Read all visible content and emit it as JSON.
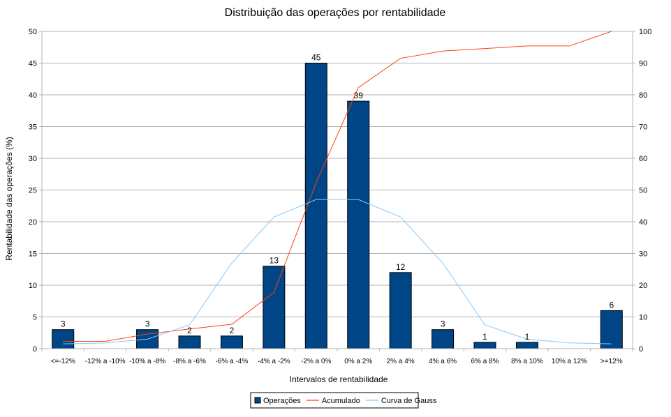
{
  "chart_data": {
    "type": "bar",
    "title": "Distribuição das operações por rentabilidade",
    "xlabel": "Intervalos de rentabilidade",
    "ylabel": "Rentabilidade das operações (%)",
    "ylim": [
      0,
      50
    ],
    "y_ticks": [
      0,
      5,
      10,
      15,
      20,
      25,
      30,
      35,
      40,
      45,
      50
    ],
    "y2lim": [
      0,
      100
    ],
    "y2_ticks": [
      0,
      10,
      20,
      30,
      40,
      50,
      60,
      70,
      80,
      90,
      100
    ],
    "grid": true,
    "legend_position": "bottom",
    "categories": [
      "<=-12%",
      "-12% a -10%",
      "-10% a -8%",
      "-8% a -6%",
      "-6% a -4%",
      "-4% a -2%",
      "-2% a 0%",
      "0% a 2%",
      "2% a 4%",
      "4% a 6%",
      "6% a 8%",
      "8% a 10%",
      "10% a 12%",
      ">=12%"
    ],
    "series": [
      {
        "name": "Operações",
        "kind": "bar",
        "axis": "left",
        "color": "#004586",
        "values": [
          3,
          0,
          3,
          2,
          2,
          13,
          45,
          39,
          12,
          3,
          1,
          1,
          0,
          6
        ],
        "labels": [
          "3",
          "",
          "3",
          "2",
          "2",
          "13",
          "45",
          "39",
          "12",
          "3",
          "1",
          "1",
          "",
          "6"
        ]
      },
      {
        "name": "Acumulado",
        "kind": "line",
        "axis": "right",
        "color": "#ff420e",
        "values": [
          2.3,
          2.3,
          4.6,
          6.2,
          7.7,
          17.7,
          52.3,
          82.3,
          91.5,
          93.8,
          94.6,
          95.4,
          95.4,
          100
        ]
      },
      {
        "name": "Curva de Gauss",
        "kind": "line",
        "axis": "right",
        "color": "#83caff",
        "values": [
          1.5,
          1.8,
          3.0,
          7.5,
          27,
          41.5,
          47,
          47,
          41.5,
          27,
          7.5,
          3.0,
          1.8,
          1.5
        ]
      }
    ]
  }
}
